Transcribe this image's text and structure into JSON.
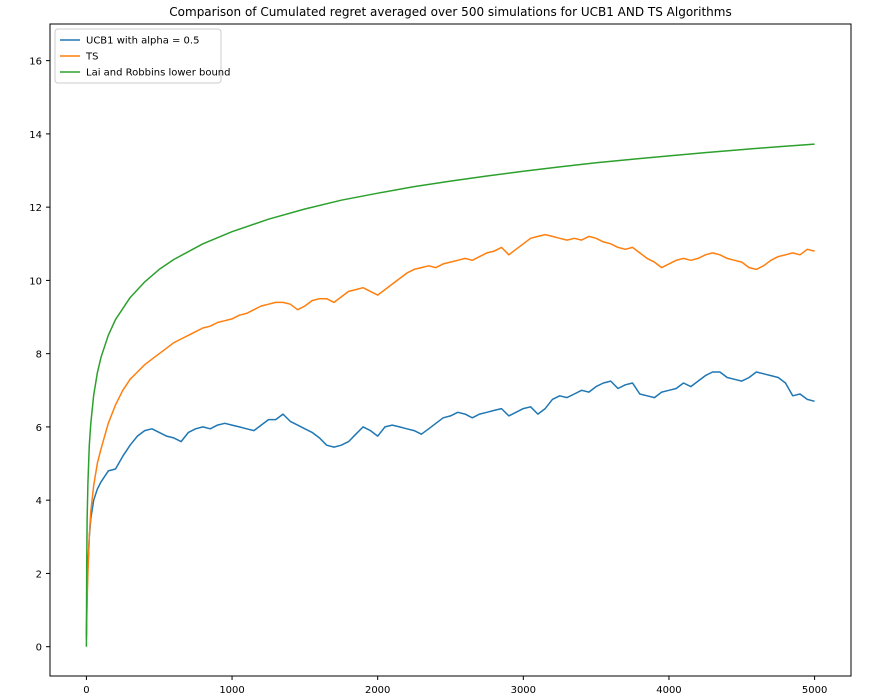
{
  "chart_data": {
    "type": "line",
    "title": "Comparison of Cumulated regret averaged over 500 simulations for UCB1 AND TS Algorithms",
    "xlabel": "",
    "ylabel": "",
    "xlim": [
      -250,
      5250
    ],
    "ylim": [
      -0.8,
      17.0
    ],
    "x_ticks": [
      0,
      1000,
      2000,
      3000,
      4000,
      5000
    ],
    "y_ticks": [
      0,
      2,
      4,
      6,
      8,
      10,
      12,
      14,
      16
    ],
    "grid": false,
    "legend_position": "top-left",
    "series": [
      {
        "name": "UCB1 with alpha = 0.5",
        "color": "#1f77b4",
        "x": [
          0,
          5,
          10,
          20,
          30,
          50,
          75,
          100,
          150,
          200,
          250,
          300,
          350,
          400,
          450,
          500,
          550,
          600,
          650,
          700,
          750,
          800,
          850,
          900,
          950,
          1000,
          1050,
          1100,
          1150,
          1200,
          1250,
          1300,
          1350,
          1400,
          1450,
          1500,
          1550,
          1600,
          1650,
          1700,
          1750,
          1800,
          1850,
          1900,
          1950,
          2000,
          2050,
          2100,
          2150,
          2200,
          2250,
          2300,
          2350,
          2400,
          2450,
          2500,
          2550,
          2600,
          2650,
          2700,
          2750,
          2800,
          2850,
          2900,
          2950,
          3000,
          3050,
          3100,
          3150,
          3200,
          3250,
          3300,
          3350,
          3400,
          3450,
          3500,
          3550,
          3600,
          3650,
          3700,
          3750,
          3800,
          3850,
          3900,
          3950,
          4000,
          4050,
          4100,
          4150,
          4200,
          4250,
          4300,
          4350,
          4400,
          4450,
          4500,
          4550,
          4600,
          4650,
          4700,
          4750,
          4800,
          4850,
          4900,
          4950,
          5000
        ],
        "y": [
          0.3,
          1.5,
          2.2,
          3.0,
          3.5,
          4.0,
          4.3,
          4.5,
          4.8,
          4.85,
          5.2,
          5.5,
          5.75,
          5.9,
          5.95,
          5.85,
          5.75,
          5.7,
          5.6,
          5.85,
          5.95,
          6.0,
          5.95,
          6.05,
          6.1,
          6.05,
          6.0,
          5.95,
          5.9,
          6.05,
          6.2,
          6.2,
          6.35,
          6.15,
          6.05,
          5.95,
          5.85,
          5.7,
          5.5,
          5.45,
          5.5,
          5.6,
          5.8,
          6.0,
          5.9,
          5.75,
          6.0,
          6.05,
          6.0,
          5.95,
          5.9,
          5.8,
          5.95,
          6.1,
          6.25,
          6.3,
          6.4,
          6.35,
          6.25,
          6.35,
          6.4,
          6.45,
          6.5,
          6.3,
          6.4,
          6.5,
          6.55,
          6.35,
          6.5,
          6.75,
          6.85,
          6.8,
          6.9,
          7.0,
          6.95,
          7.1,
          7.2,
          7.25,
          7.05,
          7.15,
          7.2,
          6.9,
          6.85,
          6.8,
          6.95,
          7.0,
          7.05,
          7.2,
          7.1,
          7.25,
          7.4,
          7.5,
          7.5,
          7.35,
          7.3,
          7.25,
          7.35,
          7.5,
          7.45,
          7.4,
          7.35,
          7.2,
          6.85,
          6.9,
          6.75,
          6.7
        ]
      },
      {
        "name": "TS",
        "color": "#ff7f0e",
        "x": [
          0,
          5,
          10,
          20,
          30,
          50,
          75,
          100,
          150,
          200,
          250,
          300,
          350,
          400,
          450,
          500,
          550,
          600,
          650,
          700,
          750,
          800,
          850,
          900,
          950,
          1000,
          1050,
          1100,
          1150,
          1200,
          1250,
          1300,
          1350,
          1400,
          1450,
          1500,
          1550,
          1600,
          1650,
          1700,
          1750,
          1800,
          1850,
          1900,
          1950,
          2000,
          2050,
          2100,
          2150,
          2200,
          2250,
          2300,
          2350,
          2400,
          2450,
          2500,
          2550,
          2600,
          2650,
          2700,
          2750,
          2800,
          2850,
          2900,
          2950,
          3000,
          3050,
          3100,
          3150,
          3200,
          3250,
          3300,
          3350,
          3400,
          3450,
          3500,
          3550,
          3600,
          3650,
          3700,
          3750,
          3800,
          3850,
          3900,
          3950,
          4000,
          4050,
          4100,
          4150,
          4200,
          4250,
          4300,
          4350,
          4400,
          4450,
          4500,
          4550,
          4600,
          4650,
          4700,
          4750,
          4800,
          4850,
          4900,
          4950,
          5000
        ],
        "y": [
          0.2,
          1.2,
          2.0,
          3.0,
          3.7,
          4.4,
          5.0,
          5.4,
          6.1,
          6.6,
          7.0,
          7.3,
          7.5,
          7.7,
          7.85,
          8.0,
          8.15,
          8.3,
          8.4,
          8.5,
          8.6,
          8.7,
          8.75,
          8.85,
          8.9,
          8.95,
          9.05,
          9.1,
          9.2,
          9.3,
          9.35,
          9.4,
          9.4,
          9.35,
          9.2,
          9.3,
          9.45,
          9.5,
          9.5,
          9.4,
          9.55,
          9.7,
          9.75,
          9.8,
          9.7,
          9.6,
          9.75,
          9.9,
          10.05,
          10.2,
          10.3,
          10.35,
          10.4,
          10.35,
          10.45,
          10.5,
          10.55,
          10.6,
          10.55,
          10.65,
          10.75,
          10.8,
          10.9,
          10.7,
          10.85,
          11.0,
          11.15,
          11.2,
          11.25,
          11.2,
          11.15,
          11.1,
          11.15,
          11.1,
          11.2,
          11.15,
          11.05,
          11.0,
          10.9,
          10.85,
          10.9,
          10.75,
          10.6,
          10.5,
          10.35,
          10.45,
          10.55,
          10.6,
          10.55,
          10.6,
          10.7,
          10.75,
          10.7,
          10.6,
          10.55,
          10.5,
          10.35,
          10.3,
          10.4,
          10.55,
          10.65,
          10.7,
          10.75,
          10.7,
          10.85,
          10.8
        ]
      },
      {
        "name": "Lai and Robbins lower bound",
        "color": "#2ca02c",
        "x": [
          0,
          2,
          5,
          10,
          20,
          30,
          50,
          75,
          100,
          150,
          200,
          300,
          400,
          500,
          600,
          800,
          1000,
          1250,
          1500,
          1750,
          2000,
          2250,
          2500,
          2750,
          3000,
          3250,
          3500,
          3750,
          4000,
          4250,
          4500,
          4750,
          5000
        ],
        "y": [
          0.0,
          2.09,
          3.44,
          4.45,
          5.5,
          6.1,
          6.87,
          7.47,
          7.9,
          8.5,
          8.93,
          9.53,
          9.96,
          10.3,
          10.57,
          11.0,
          11.33,
          11.67,
          11.95,
          12.19,
          12.38,
          12.56,
          12.71,
          12.85,
          12.98,
          13.1,
          13.21,
          13.31,
          13.4,
          13.49,
          13.57,
          13.65,
          13.72
        ]
      }
    ]
  }
}
